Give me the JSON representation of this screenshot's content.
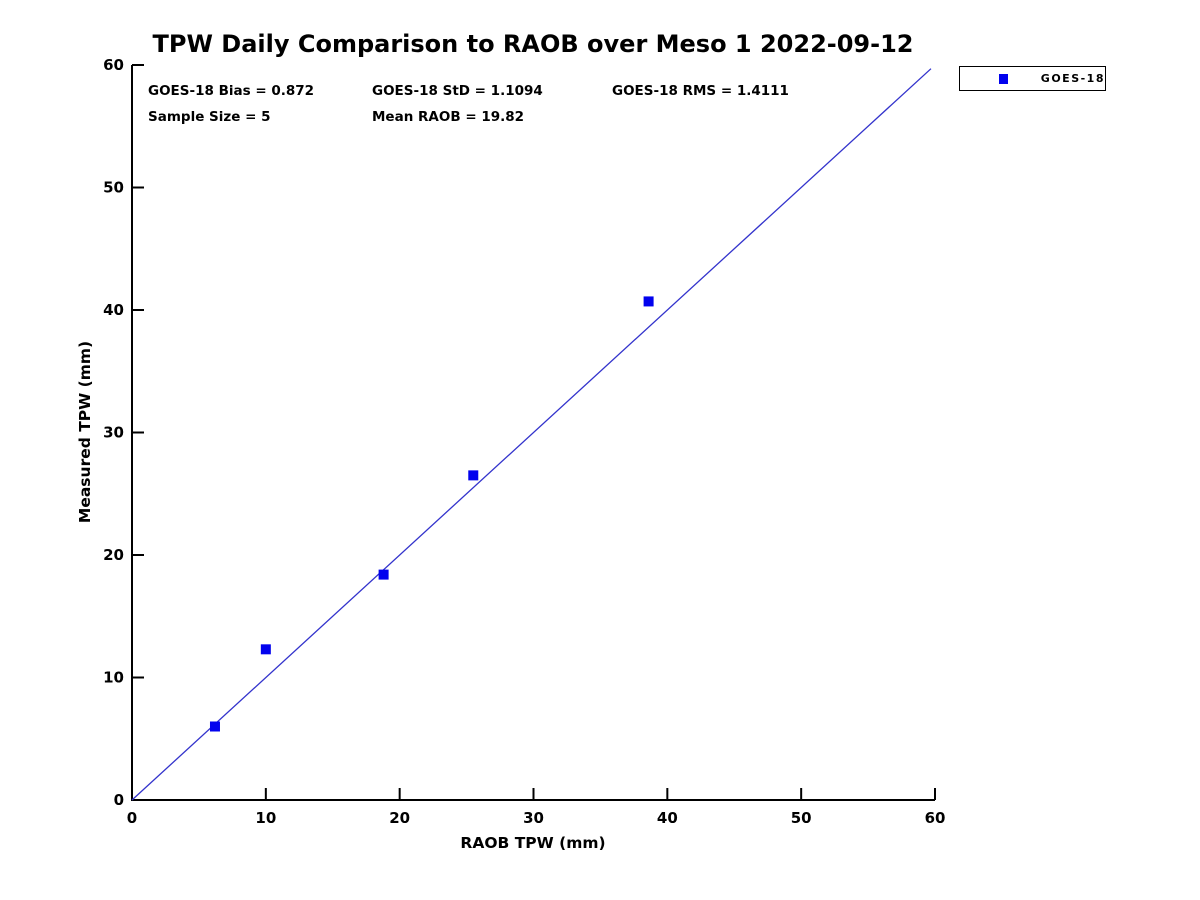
{
  "title": "TPW Daily Comparison to RAOB over Meso 1 2022-09-12",
  "annotations": {
    "bias": "GOES-18 Bias = 0.872",
    "std": "GOES-18 StD = 1.1094",
    "rms": "GOES-18 RMS = 1.4111",
    "sample_size": "Sample Size = 5",
    "mean_raob": "Mean RAOB = 19.82"
  },
  "legend": {
    "label": "GOES-18"
  },
  "chart_data": {
    "type": "scatter",
    "title": "TPW Daily Comparison to RAOB over Meso 1 2022-09-12",
    "xlabel": "RAOB TPW (mm)",
    "ylabel": "Measured TPW (mm)",
    "xlim": [
      0,
      60
    ],
    "ylim": [
      0,
      60
    ],
    "x_ticks": [
      0,
      10,
      20,
      30,
      40,
      50,
      60
    ],
    "y_ticks": [
      0,
      10,
      20,
      30,
      40,
      50,
      60
    ],
    "grid": false,
    "legend_position": "outside-top-right",
    "series": [
      {
        "name": "GOES-18",
        "marker": "square",
        "color": "#0202ee",
        "points": [
          [
            6.2,
            6.0
          ],
          [
            10.0,
            12.3
          ],
          [
            18.8,
            18.4
          ],
          [
            25.5,
            26.5
          ],
          [
            38.6,
            40.7
          ]
        ]
      }
    ],
    "reference_line": {
      "name": "one-to-one-line",
      "from": [
        0,
        0
      ],
      "to": [
        59.7,
        59.7
      ],
      "color": "#3333cc"
    },
    "colors": {
      "axis": "#000000",
      "marker": "#0202ee",
      "line": "#3333cc"
    }
  }
}
